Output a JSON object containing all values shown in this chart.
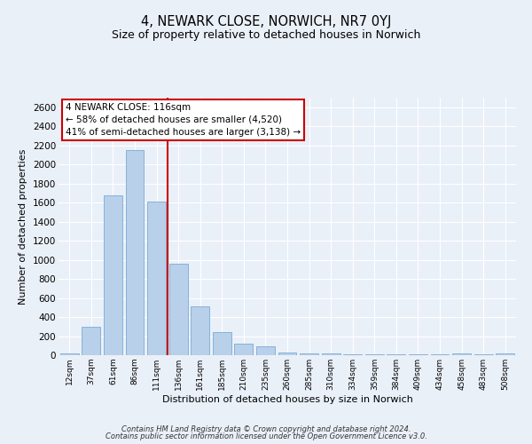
{
  "title": "4, NEWARK CLOSE, NORWICH, NR7 0YJ",
  "subtitle": "Size of property relative to detached houses in Norwich",
  "xlabel": "Distribution of detached houses by size in Norwich",
  "ylabel": "Number of detached properties",
  "bar_labels": [
    "12sqm",
    "37sqm",
    "61sqm",
    "86sqm",
    "111sqm",
    "136sqm",
    "161sqm",
    "185sqm",
    "210sqm",
    "235sqm",
    "260sqm",
    "285sqm",
    "310sqm",
    "334sqm",
    "359sqm",
    "384sqm",
    "409sqm",
    "434sqm",
    "458sqm",
    "483sqm",
    "508sqm"
  ],
  "bar_values": [
    20,
    300,
    1680,
    2150,
    1610,
    960,
    510,
    245,
    125,
    95,
    30,
    20,
    15,
    10,
    10,
    8,
    5,
    5,
    15,
    5,
    15
  ],
  "bar_color": "#b8d0ea",
  "bar_edge_color": "#7aaBd4",
  "vline_x_idx": 4,
  "vline_color": "#cc0000",
  "annotation_title": "4 NEWARK CLOSE: 116sqm",
  "annotation_line2": "← 58% of detached houses are smaller (4,520)",
  "annotation_line3": "41% of semi-detached houses are larger (3,138) →",
  "annotation_box_color": "#ffffff",
  "annotation_box_edge": "#cc0000",
  "ylim": [
    0,
    2700
  ],
  "yticks": [
    0,
    200,
    400,
    600,
    800,
    1000,
    1200,
    1400,
    1600,
    1800,
    2000,
    2200,
    2400,
    2600
  ],
  "bg_color": "#eaf0f8",
  "fig_bg_color": "#eaf0f8",
  "grid_color": "#ffffff",
  "footer_line1": "Contains HM Land Registry data © Crown copyright and database right 2024.",
  "footer_line2": "Contains public sector information licensed under the Open Government Licence v3.0."
}
